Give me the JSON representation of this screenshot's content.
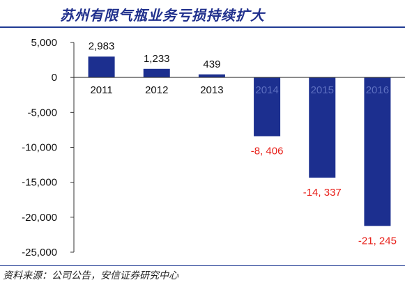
{
  "header": {
    "title": "苏州有限气瓶业务亏损持续扩大"
  },
  "footer": {
    "source": "资料来源：公司公告，安信证券研究中心"
  },
  "chart_data": {
    "type": "bar",
    "title": "苏州有限气瓶业务亏损持续扩大",
    "xlabel": "",
    "ylabel": "",
    "categories": [
      "2011",
      "2012",
      "2013",
      "2014",
      "2015",
      "2016"
    ],
    "values": [
      2983,
      1233,
      439,
      -8406,
      -14337,
      -21245
    ],
    "data_labels": [
      "2,983",
      "1,233",
      "439",
      "-8, 406",
      "-14, 337",
      "-21, 245"
    ],
    "ylim": [
      -25000,
      5000
    ],
    "yticks": [
      5000,
      0,
      -5000,
      -10000,
      -15000,
      -20000,
      -25000
    ],
    "ytick_labels": [
      "5,000",
      "0",
      "-5,000",
      "-10,000",
      "-15,000",
      "-20,000",
      "-25,000"
    ],
    "grid": false,
    "legend": "none",
    "colors": {
      "bar": "#1c2f8f",
      "negative_label": "#e8201a",
      "positive_label": "#111111",
      "tick_label_normal": "#111111",
      "tick_label_on_bar": "#5d6fc0",
      "axis": "#333333"
    }
  }
}
